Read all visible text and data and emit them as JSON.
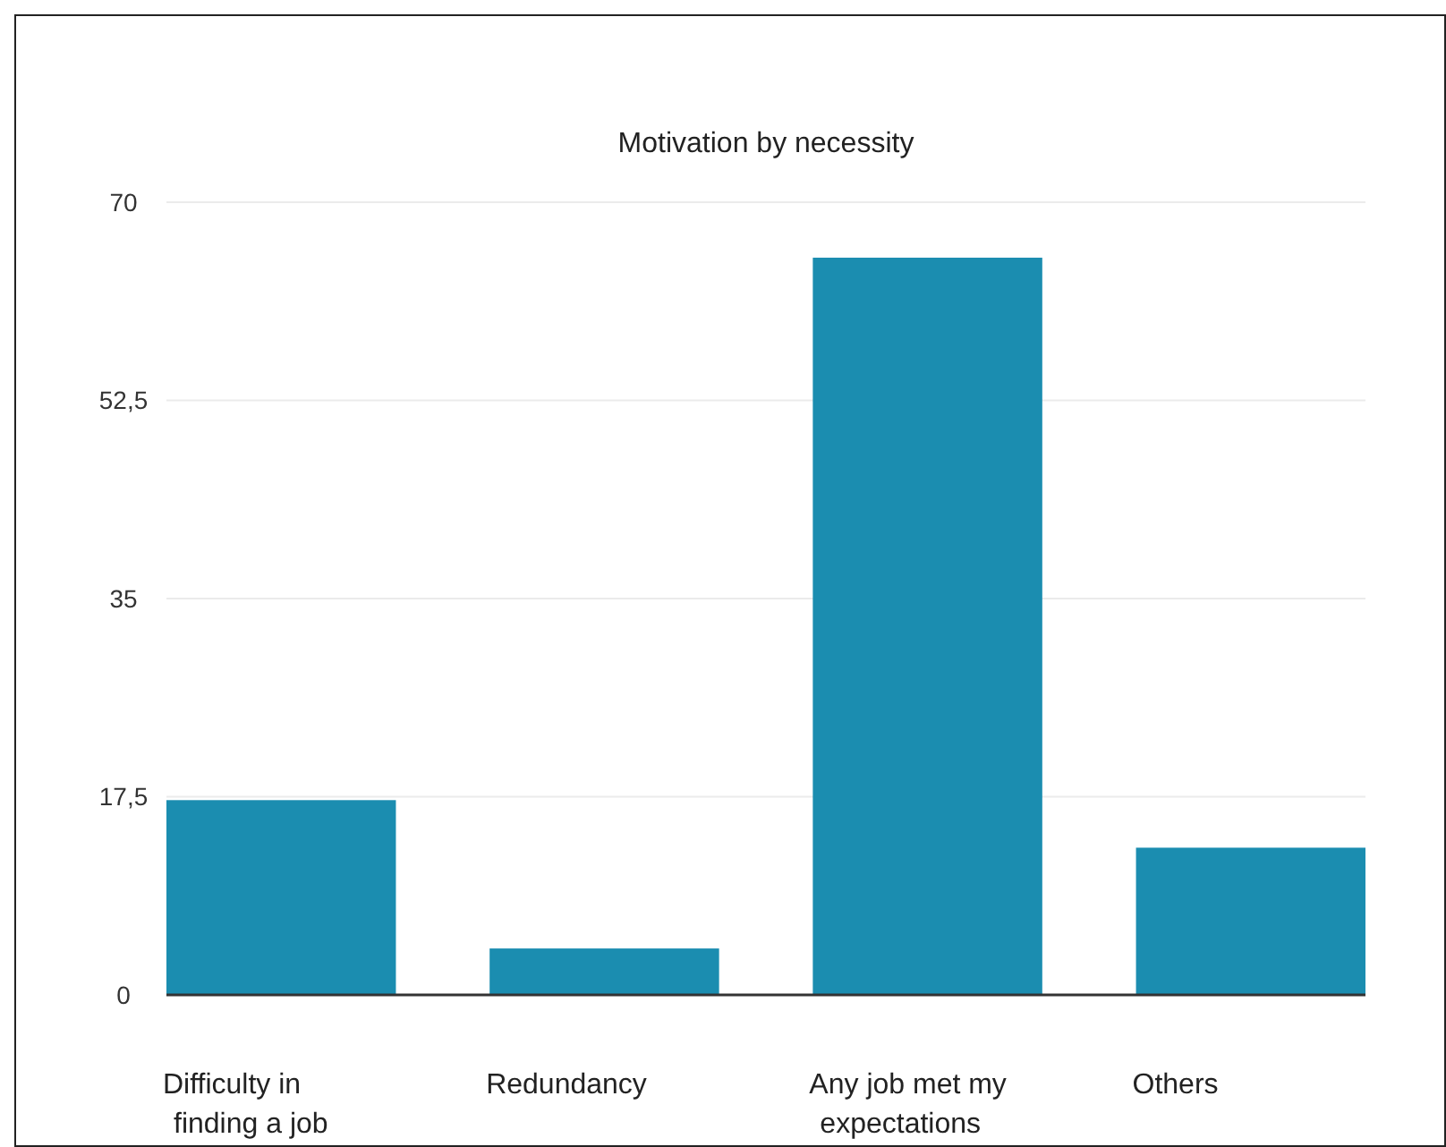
{
  "chart_data": {
    "type": "bar",
    "title": "Motivation by necessity",
    "categories": [
      "Difficulty in finding a job",
      "Redundancy",
      "Any job met my expectations",
      "Others"
    ],
    "values": [
      17.2,
      4.1,
      65.1,
      13.0
    ],
    "color": "#1b8db0",
    "ylim": [
      0,
      70
    ],
    "yticks": [
      0,
      {
        "value": 17.5,
        "label": "17,5"
      },
      35,
      {
        "value": 52.5,
        "label": "52,5"
      },
      70
    ],
    "grid": "y"
  }
}
